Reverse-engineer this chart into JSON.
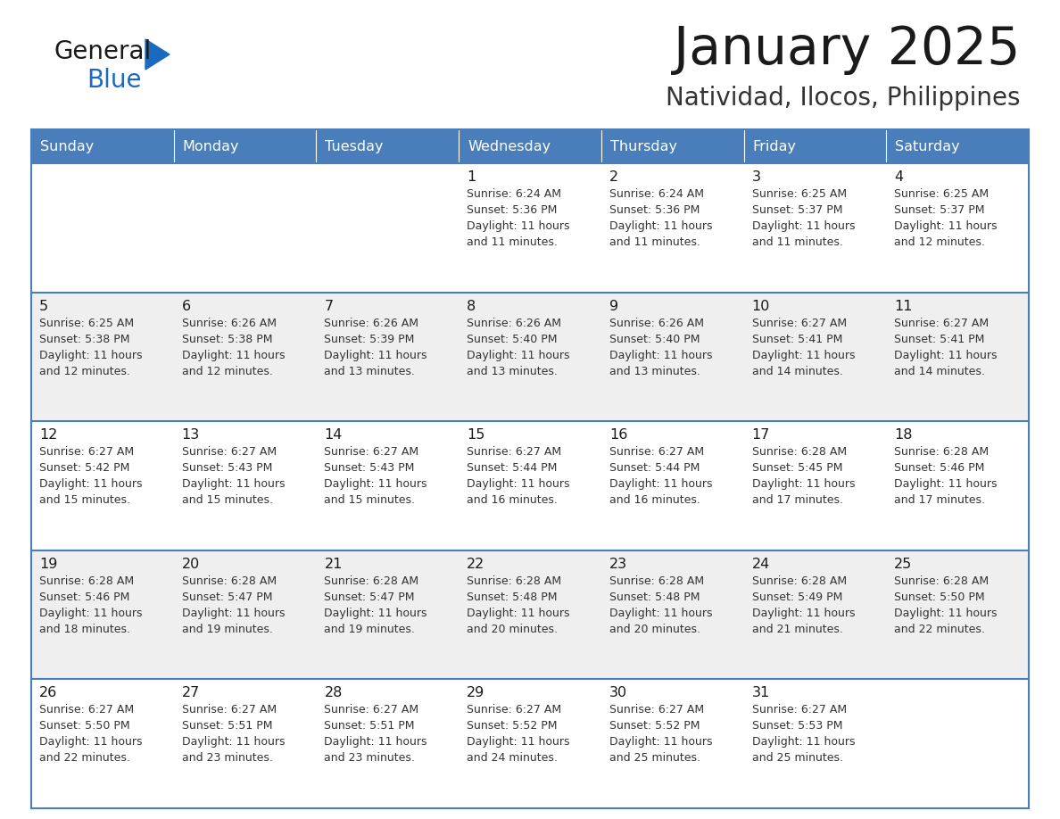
{
  "title": "January 2025",
  "subtitle": "Natividad, Ilocos, Philippines",
  "days_of_week": [
    "Sunday",
    "Monday",
    "Tuesday",
    "Wednesday",
    "Thursday",
    "Friday",
    "Saturday"
  ],
  "header_bg": "#4A7EBB",
  "header_text": "#FFFFFF",
  "row_bg_even": "#FFFFFF",
  "row_bg_odd": "#EFEFEF",
  "border_color": "#4A7EBB",
  "text_color": "#333333",
  "logo_general_color": "#1a1a1a",
  "logo_blue_color": "#1a6bbf",
  "logo_triangle_color": "#1a6bbf",
  "weeks": [
    [
      {
        "day": "",
        "info": ""
      },
      {
        "day": "",
        "info": ""
      },
      {
        "day": "",
        "info": ""
      },
      {
        "day": "1",
        "info": "Sunrise: 6:24 AM\nSunset: 5:36 PM\nDaylight: 11 hours\nand 11 minutes."
      },
      {
        "day": "2",
        "info": "Sunrise: 6:24 AM\nSunset: 5:36 PM\nDaylight: 11 hours\nand 11 minutes."
      },
      {
        "day": "3",
        "info": "Sunrise: 6:25 AM\nSunset: 5:37 PM\nDaylight: 11 hours\nand 11 minutes."
      },
      {
        "day": "4",
        "info": "Sunrise: 6:25 AM\nSunset: 5:37 PM\nDaylight: 11 hours\nand 12 minutes."
      }
    ],
    [
      {
        "day": "5",
        "info": "Sunrise: 6:25 AM\nSunset: 5:38 PM\nDaylight: 11 hours\nand 12 minutes."
      },
      {
        "day": "6",
        "info": "Sunrise: 6:26 AM\nSunset: 5:38 PM\nDaylight: 11 hours\nand 12 minutes."
      },
      {
        "day": "7",
        "info": "Sunrise: 6:26 AM\nSunset: 5:39 PM\nDaylight: 11 hours\nand 13 minutes."
      },
      {
        "day": "8",
        "info": "Sunrise: 6:26 AM\nSunset: 5:40 PM\nDaylight: 11 hours\nand 13 minutes."
      },
      {
        "day": "9",
        "info": "Sunrise: 6:26 AM\nSunset: 5:40 PM\nDaylight: 11 hours\nand 13 minutes."
      },
      {
        "day": "10",
        "info": "Sunrise: 6:27 AM\nSunset: 5:41 PM\nDaylight: 11 hours\nand 14 minutes."
      },
      {
        "day": "11",
        "info": "Sunrise: 6:27 AM\nSunset: 5:41 PM\nDaylight: 11 hours\nand 14 minutes."
      }
    ],
    [
      {
        "day": "12",
        "info": "Sunrise: 6:27 AM\nSunset: 5:42 PM\nDaylight: 11 hours\nand 15 minutes."
      },
      {
        "day": "13",
        "info": "Sunrise: 6:27 AM\nSunset: 5:43 PM\nDaylight: 11 hours\nand 15 minutes."
      },
      {
        "day": "14",
        "info": "Sunrise: 6:27 AM\nSunset: 5:43 PM\nDaylight: 11 hours\nand 15 minutes."
      },
      {
        "day": "15",
        "info": "Sunrise: 6:27 AM\nSunset: 5:44 PM\nDaylight: 11 hours\nand 16 minutes."
      },
      {
        "day": "16",
        "info": "Sunrise: 6:27 AM\nSunset: 5:44 PM\nDaylight: 11 hours\nand 16 minutes."
      },
      {
        "day": "17",
        "info": "Sunrise: 6:28 AM\nSunset: 5:45 PM\nDaylight: 11 hours\nand 17 minutes."
      },
      {
        "day": "18",
        "info": "Sunrise: 6:28 AM\nSunset: 5:46 PM\nDaylight: 11 hours\nand 17 minutes."
      }
    ],
    [
      {
        "day": "19",
        "info": "Sunrise: 6:28 AM\nSunset: 5:46 PM\nDaylight: 11 hours\nand 18 minutes."
      },
      {
        "day": "20",
        "info": "Sunrise: 6:28 AM\nSunset: 5:47 PM\nDaylight: 11 hours\nand 19 minutes."
      },
      {
        "day": "21",
        "info": "Sunrise: 6:28 AM\nSunset: 5:47 PM\nDaylight: 11 hours\nand 19 minutes."
      },
      {
        "day": "22",
        "info": "Sunrise: 6:28 AM\nSunset: 5:48 PM\nDaylight: 11 hours\nand 20 minutes."
      },
      {
        "day": "23",
        "info": "Sunrise: 6:28 AM\nSunset: 5:48 PM\nDaylight: 11 hours\nand 20 minutes."
      },
      {
        "day": "24",
        "info": "Sunrise: 6:28 AM\nSunset: 5:49 PM\nDaylight: 11 hours\nand 21 minutes."
      },
      {
        "day": "25",
        "info": "Sunrise: 6:28 AM\nSunset: 5:50 PM\nDaylight: 11 hours\nand 22 minutes."
      }
    ],
    [
      {
        "day": "26",
        "info": "Sunrise: 6:27 AM\nSunset: 5:50 PM\nDaylight: 11 hours\nand 22 minutes."
      },
      {
        "day": "27",
        "info": "Sunrise: 6:27 AM\nSunset: 5:51 PM\nDaylight: 11 hours\nand 23 minutes."
      },
      {
        "day": "28",
        "info": "Sunrise: 6:27 AM\nSunset: 5:51 PM\nDaylight: 11 hours\nand 23 minutes."
      },
      {
        "day": "29",
        "info": "Sunrise: 6:27 AM\nSunset: 5:52 PM\nDaylight: 11 hours\nand 24 minutes."
      },
      {
        "day": "30",
        "info": "Sunrise: 6:27 AM\nSunset: 5:52 PM\nDaylight: 11 hours\nand 25 minutes."
      },
      {
        "day": "31",
        "info": "Sunrise: 6:27 AM\nSunset: 5:53 PM\nDaylight: 11 hours\nand 25 minutes."
      },
      {
        "day": "",
        "info": ""
      }
    ]
  ]
}
